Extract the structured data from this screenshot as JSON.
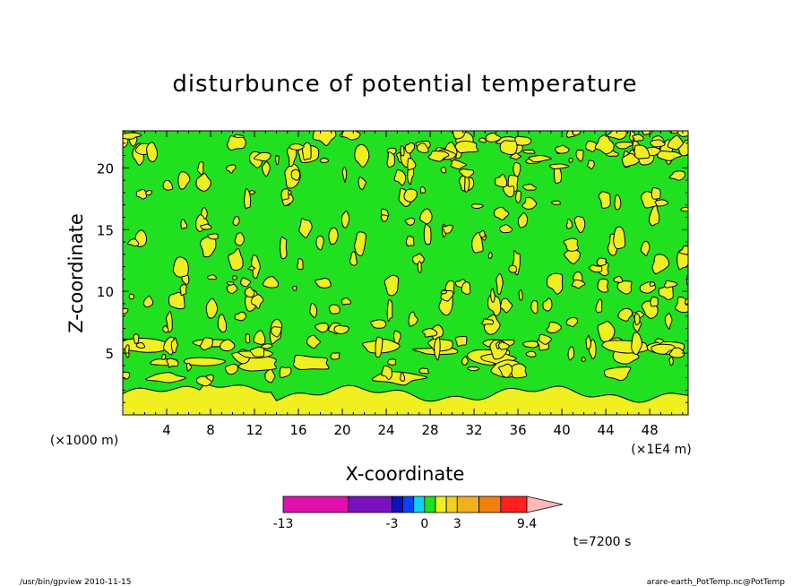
{
  "chart_data": {
    "type": "heatmap",
    "title": "disturbunce of potential temperature",
    "xlabel": "X-coordinate",
    "ylabel": "Z-coordinate",
    "x_unit_left": "(×1000 m)",
    "x_unit_right": "(×1E4 m)",
    "xlim": [
      0,
      51.5
    ],
    "ylim": [
      0,
      23
    ],
    "x_ticks": [
      4,
      8,
      12,
      16,
      20,
      24,
      28,
      32,
      36,
      40,
      44,
      48
    ],
    "x_tick_labels": [
      "4",
      "8",
      "12",
      "16",
      "20",
      "24",
      "28",
      "32",
      "36",
      "40",
      "44",
      "48"
    ],
    "y_ticks": [
      5,
      10,
      15,
      20
    ],
    "y_tick_labels": [
      "5",
      "10",
      "15",
      "20"
    ],
    "colorbar": {
      "levels": [
        -13,
        -7,
        -3,
        -2,
        -1,
        0,
        1,
        2,
        3,
        5,
        7,
        9.4
      ],
      "labels": [
        "-13",
        "-3",
        "0",
        "3",
        "9.4"
      ],
      "colors": [
        "#e010b0",
        "#7c10c0",
        "#1010c0",
        "#1040ff",
        "#10d0f0",
        "#20e020",
        "#f0f020",
        "#f0d020",
        "#f0b020",
        "#f08010",
        "#ff2020",
        "#ff8080",
        "#ffb8b8"
      ]
    },
    "dominant_fields": {
      "positive_small": {
        "range": [
          0,
          1
        ],
        "color": "#f0f020"
      },
      "negative_small": {
        "range": [
          -1,
          0
        ],
        "color": "#20e020"
      }
    },
    "near_surface_band": {
      "z_range": [
        0,
        2
      ],
      "value_range": [
        0,
        1
      ]
    }
  },
  "annotations": {
    "time": "t=7200 s",
    "footer_left": "/usr/bin/gpview  2010-11-15",
    "footer_right": "arare-earth_PotTemp.nc@PotTemp"
  },
  "colors": {
    "background": "#ffffff",
    "field_green": "#20e020",
    "field_yellow": "#f0f020",
    "contour": "#000000"
  }
}
